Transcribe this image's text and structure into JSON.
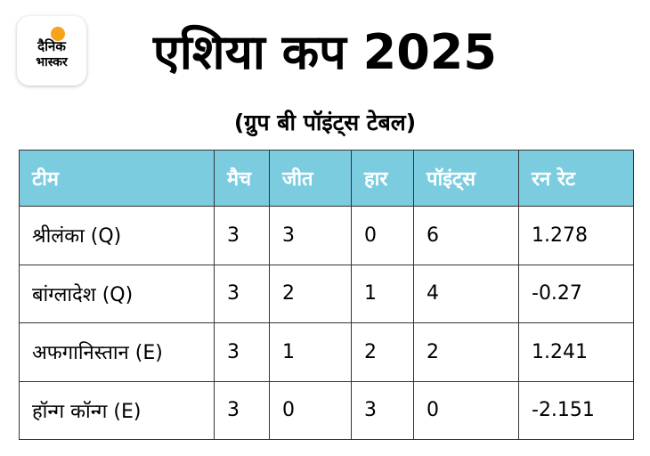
{
  "logo": {
    "line1": "दैनिक",
    "line2": "भास्कर",
    "accent_color": "#f7a21b"
  },
  "title": "एशिया कप 2025",
  "subtitle": "(ग्रुप बी पॉइंट्स टेबल)",
  "table": {
    "header_color": "#7ccce0",
    "columns": [
      "टीम",
      "मैच",
      "जीत",
      "हार",
      "पॉइंट्स",
      "रन रेट"
    ],
    "rows": [
      [
        "श्रीलंका (Q)",
        "3",
        "3",
        "0",
        "6",
        "1.278"
      ],
      [
        "बांग्लादेश (Q)",
        "3",
        "2",
        "1",
        "4",
        "-0.27"
      ],
      [
        "अफगानिस्तान (E)",
        "3",
        "1",
        "2",
        "2",
        "1.241"
      ],
      [
        "हॉन्ग कॉन्ग (E)",
        "3",
        "0",
        "3",
        "0",
        "-2.151"
      ]
    ]
  }
}
